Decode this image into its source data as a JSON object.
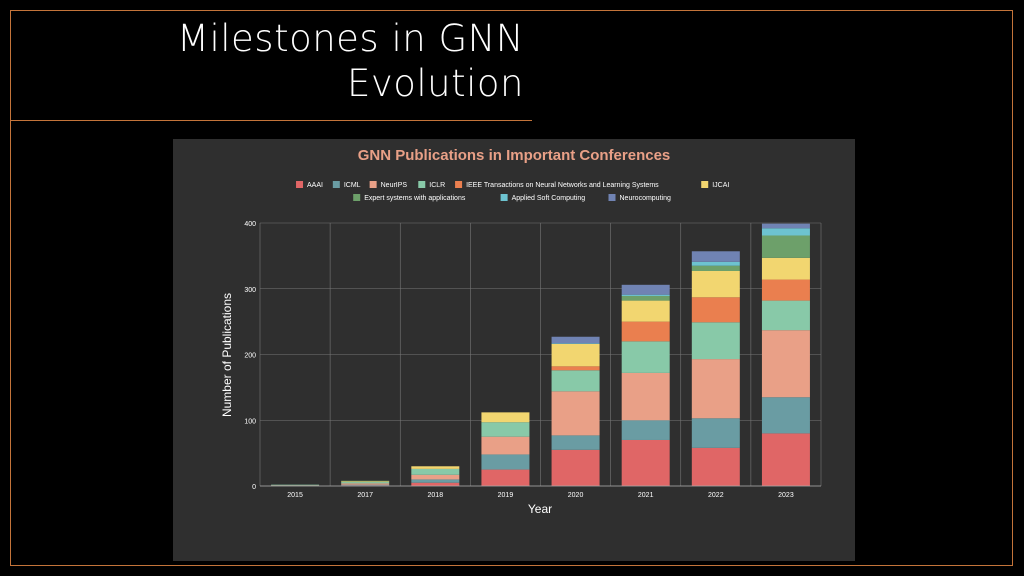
{
  "slide": {
    "title_line1": "Milestones in GNN",
    "title_line2": "Evolution"
  },
  "chart_data": {
    "type": "bar",
    "stacked": true,
    "title": "GNN Publications in Important Conferences",
    "xlabel": "Year",
    "ylabel": "Number of Publications",
    "ylim": [
      0,
      400
    ],
    "yticks": [
      0,
      100,
      200,
      300,
      400
    ],
    "grid": true,
    "legend_position": "top",
    "categories": [
      "2015",
      "2017",
      "2018",
      "2019",
      "2020",
      "2021",
      "2022",
      "2023"
    ],
    "series": [
      {
        "name": "AAAI",
        "color": "#e06666",
        "values": [
          0,
          1,
          5,
          25,
          55,
          70,
          58,
          80
        ]
      },
      {
        "name": "ICML",
        "color": "#6a9ca3",
        "values": [
          0,
          1,
          5,
          23,
          22,
          30,
          45,
          55
        ]
      },
      {
        "name": "NeurIPS",
        "color": "#e9a087",
        "values": [
          1,
          2,
          7,
          27,
          67,
          72,
          90,
          102
        ]
      },
      {
        "name": "ICLR",
        "color": "#88c9a8",
        "values": [
          1,
          2,
          9,
          22,
          32,
          48,
          56,
          45
        ]
      },
      {
        "name": "IEEE Transactions on Neural Networks and Learning Systems",
        "color": "#ea7f4f",
        "values": [
          0,
          0,
          0,
          0,
          6,
          30,
          38,
          32
        ]
      },
      {
        "name": "IJCAI",
        "color": "#f2d670",
        "values": [
          0,
          1,
          4,
          15,
          34,
          32,
          40,
          33
        ]
      },
      {
        "name": "Expert systems with applications",
        "color": "#6da06a",
        "values": [
          0,
          1,
          0,
          0,
          0,
          7,
          8,
          34
        ]
      },
      {
        "name": "Applied Soft Computing",
        "color": "#6dc3d0",
        "values": [
          0,
          0,
          0,
          0,
          1,
          2,
          6,
          11
        ]
      },
      {
        "name": "Neurocomputing",
        "color": "#7083b3",
        "values": [
          0,
          0,
          0,
          0,
          10,
          15,
          16,
          7
        ]
      }
    ]
  }
}
